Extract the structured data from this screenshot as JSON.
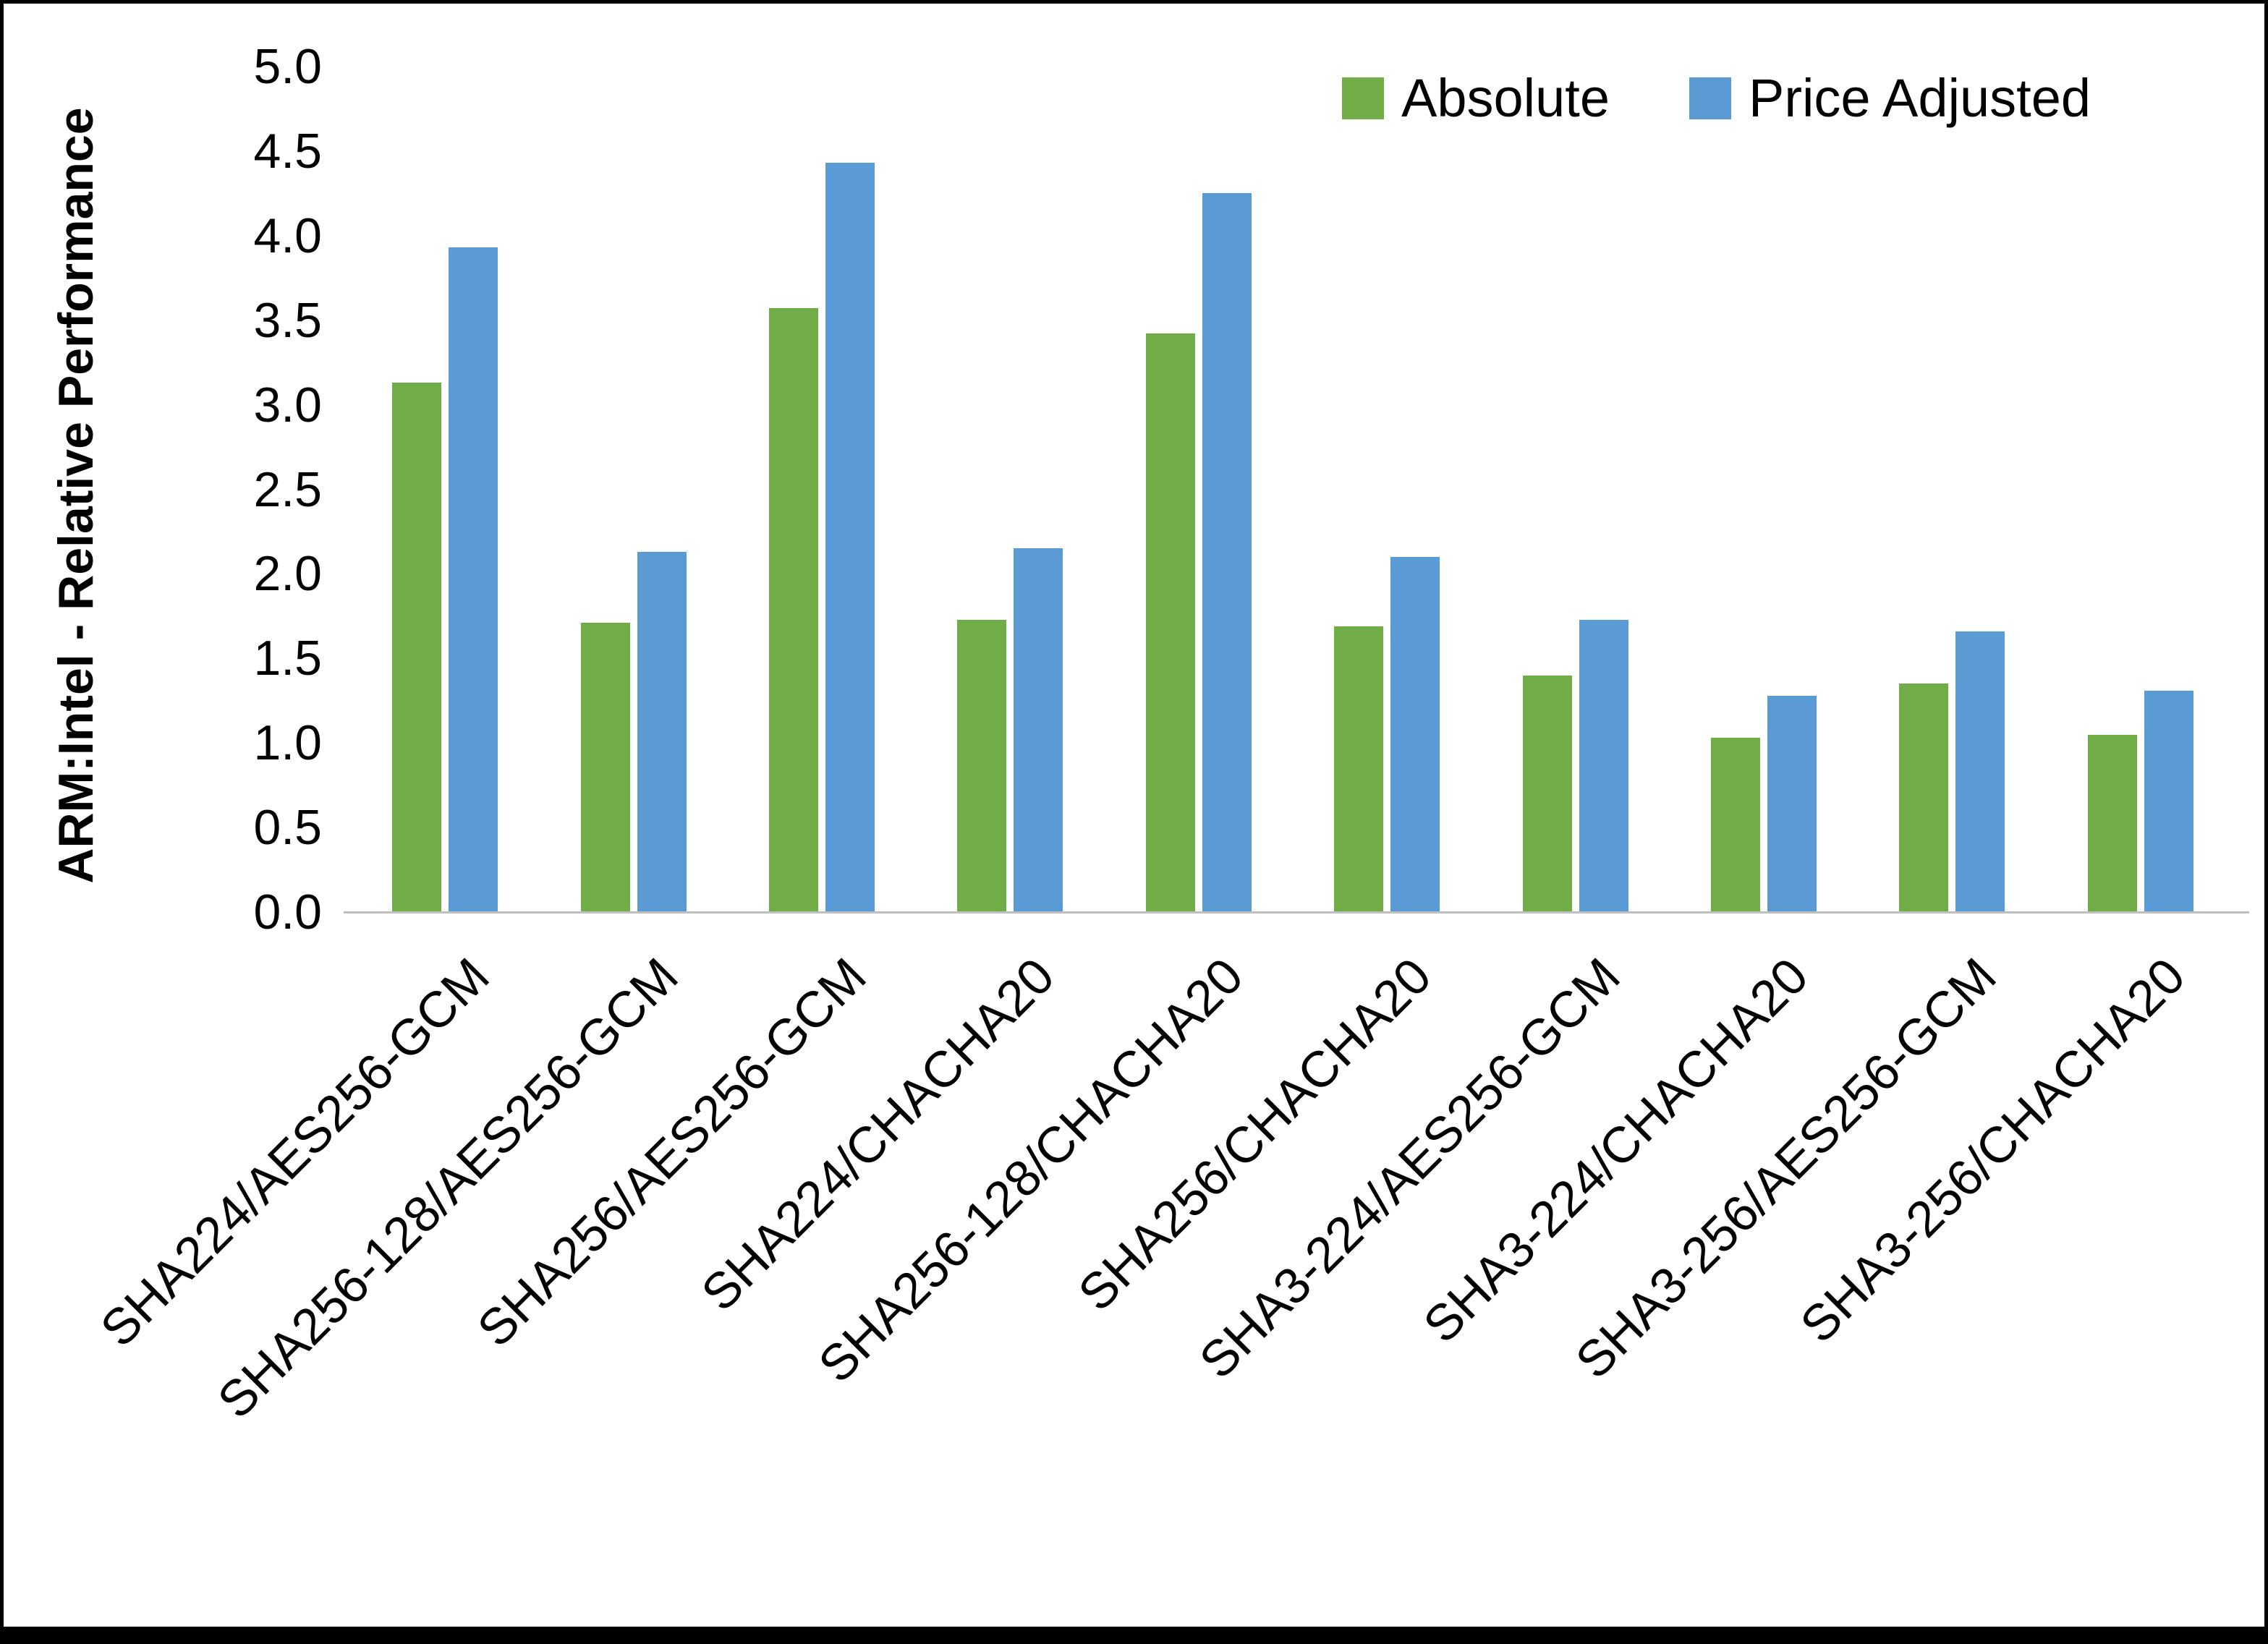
{
  "chart_data": {
    "type": "bar",
    "title": "",
    "xlabel": "",
    "ylabel": "ARM:Intel - Relative Performance",
    "ylim": [
      0,
      5
    ],
    "y_tick_step": 0.5,
    "y_ticks": [
      "0.0",
      "0.5",
      "1.0",
      "1.5",
      "2.0",
      "2.5",
      "3.0",
      "3.5",
      "4.0",
      "4.5",
      "5.0"
    ],
    "grid": false,
    "legend_position": "top-right",
    "categories": [
      "SHA224/AES256-GCM",
      "SHA256-128/AES256-GCM",
      "SHA256/AES256-GCM",
      "SHA224/CHACHA20",
      "SHA256-128/CHACHA20",
      "SHA256/CHACHA20",
      "SHA3-224/AES256-GCM",
      "SHA3-224/CHACHA20",
      "SHA3-256/AES256-GCM",
      "SHA3-256/CHACHA20"
    ],
    "series": [
      {
        "name": "Absolute",
        "color": "#70AD47",
        "values": [
          3.13,
          1.71,
          3.57,
          1.73,
          3.42,
          1.69,
          1.4,
          1.03,
          1.35,
          1.05
        ]
      },
      {
        "name": "Price Adjusted",
        "color": "#5B9BD5",
        "values": [
          3.93,
          2.13,
          4.43,
          2.15,
          4.25,
          2.1,
          1.73,
          1.28,
          1.66,
          1.31
        ]
      }
    ]
  }
}
